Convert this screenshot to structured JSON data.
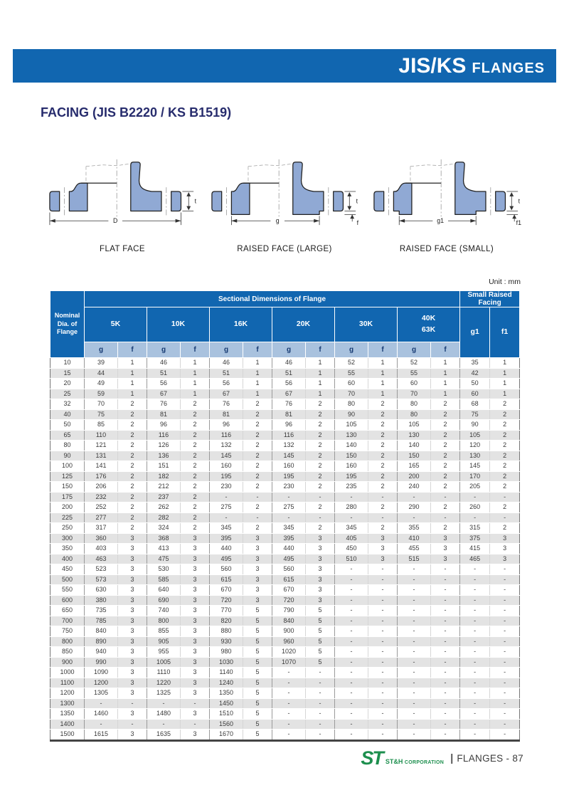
{
  "page": {
    "header_bar": {
      "title_main": "JIS/KS",
      "title_sub": "FLANGES"
    },
    "section_title": "FACING (JIS B2220 / KS B1519)",
    "unit_label": "Unit : mm"
  },
  "diagrams": [
    {
      "caption": "FLAT FACE",
      "dim_width": "D",
      "dim_thickness": "t",
      "dim_face": ""
    },
    {
      "caption": "RAISED FACE (LARGE)",
      "dim_width": "g",
      "dim_thickness": "t",
      "dim_face": "f"
    },
    {
      "caption": "RAISED FACE (SMALL)",
      "dim_width": "g1",
      "dim_thickness": "t",
      "dim_face": "f1"
    }
  ],
  "table": {
    "header": {
      "nominal_lines": [
        "Nominal",
        "Dia. of",
        "Flange"
      ],
      "group_main": "Sectional Dimensions of Flange",
      "group_right": "Small Raised Facing",
      "classes": [
        {
          "lines": [
            "5K"
          ]
        },
        {
          "lines": [
            "10K"
          ]
        },
        {
          "lines": [
            "16K"
          ]
        },
        {
          "lines": [
            "20K"
          ]
        },
        {
          "lines": [
            "30K"
          ]
        },
        {
          "lines": [
            "40K",
            "63K"
          ]
        }
      ],
      "sub_labels": [
        "g",
        "f"
      ],
      "right_cols": [
        "g1",
        "f1"
      ]
    },
    "rows": [
      {
        "dn": "10",
        "values": [
          "39",
          "1",
          "46",
          "1",
          "46",
          "1",
          "46",
          "1",
          "52",
          "1",
          "52",
          "1",
          "35",
          "1"
        ]
      },
      {
        "dn": "15",
        "values": [
          "44",
          "1",
          "51",
          "1",
          "51",
          "1",
          "51",
          "1",
          "55",
          "1",
          "55",
          "1",
          "42",
          "1"
        ]
      },
      {
        "dn": "20",
        "values": [
          "49",
          "1",
          "56",
          "1",
          "56",
          "1",
          "56",
          "1",
          "60",
          "1",
          "60",
          "1",
          "50",
          "1"
        ]
      },
      {
        "dn": "25",
        "values": [
          "59",
          "1",
          "67",
          "1",
          "67",
          "1",
          "67",
          "1",
          "70",
          "1",
          "70",
          "1",
          "60",
          "1"
        ]
      },
      {
        "dn": "32",
        "values": [
          "70",
          "2",
          "76",
          "2",
          "76",
          "2",
          "76",
          "2",
          "80",
          "2",
          "80",
          "2",
          "68",
          "2"
        ]
      },
      {
        "dn": "40",
        "values": [
          "75",
          "2",
          "81",
          "2",
          "81",
          "2",
          "81",
          "2",
          "90",
          "2",
          "80",
          "2",
          "75",
          "2"
        ]
      },
      {
        "dn": "50",
        "values": [
          "85",
          "2",
          "96",
          "2",
          "96",
          "2",
          "96",
          "2",
          "105",
          "2",
          "105",
          "2",
          "90",
          "2"
        ]
      },
      {
        "dn": "65",
        "values": [
          "110",
          "2",
          "116",
          "2",
          "116",
          "2",
          "116",
          "2",
          "130",
          "2",
          "130",
          "2",
          "105",
          "2"
        ]
      },
      {
        "dn": "80",
        "values": [
          "121",
          "2",
          "126",
          "2",
          "132",
          "2",
          "132",
          "2",
          "140",
          "2",
          "140",
          "2",
          "120",
          "2"
        ]
      },
      {
        "dn": "90",
        "values": [
          "131",
          "2",
          "136",
          "2",
          "145",
          "2",
          "145",
          "2",
          "150",
          "2",
          "150",
          "2",
          "130",
          "2"
        ]
      },
      {
        "dn": "100",
        "values": [
          "141",
          "2",
          "151",
          "2",
          "160",
          "2",
          "160",
          "2",
          "160",
          "2",
          "165",
          "2",
          "145",
          "2"
        ]
      },
      {
        "dn": "125",
        "values": [
          "176",
          "2",
          "182",
          "2",
          "195",
          "2",
          "195",
          "2",
          "195",
          "2",
          "200",
          "2",
          "170",
          "2"
        ]
      },
      {
        "dn": "150",
        "values": [
          "206",
          "2",
          "212",
          "2",
          "230",
          "2",
          "230",
          "2",
          "235",
          "2",
          "240",
          "2",
          "205",
          "2"
        ]
      },
      {
        "dn": "175",
        "values": [
          "232",
          "2",
          "237",
          "2",
          "-",
          "-",
          "-",
          "-",
          "-",
          "-",
          "-",
          "-",
          "-",
          "-"
        ]
      },
      {
        "dn": "200",
        "values": [
          "252",
          "2",
          "262",
          "2",
          "275",
          "2",
          "275",
          "2",
          "280",
          "2",
          "290",
          "2",
          "260",
          "2"
        ]
      },
      {
        "dn": "225",
        "values": [
          "277",
          "2",
          "282",
          "2",
          "-",
          "-",
          "-",
          "-",
          "-",
          "-",
          "-",
          "-",
          "-",
          "-"
        ]
      },
      {
        "dn": "250",
        "values": [
          "317",
          "2",
          "324",
          "2",
          "345",
          "2",
          "345",
          "2",
          "345",
          "2",
          "355",
          "2",
          "315",
          "2"
        ]
      },
      {
        "dn": "300",
        "values": [
          "360",
          "3",
          "368",
          "3",
          "395",
          "3",
          "395",
          "3",
          "405",
          "3",
          "410",
          "3",
          "375",
          "3"
        ]
      },
      {
        "dn": "350",
        "values": [
          "403",
          "3",
          "413",
          "3",
          "440",
          "3",
          "440",
          "3",
          "450",
          "3",
          "455",
          "3",
          "415",
          "3"
        ]
      },
      {
        "dn": "400",
        "values": [
          "463",
          "3",
          "475",
          "3",
          "495",
          "3",
          "495",
          "3",
          "510",
          "3",
          "515",
          "3",
          "465",
          "3"
        ]
      },
      {
        "dn": "450",
        "values": [
          "523",
          "3",
          "530",
          "3",
          "560",
          "3",
          "560",
          "3",
          "-",
          "-",
          "-",
          "-",
          "-",
          "-"
        ]
      },
      {
        "dn": "500",
        "values": [
          "573",
          "3",
          "585",
          "3",
          "615",
          "3",
          "615",
          "3",
          "-",
          "-",
          "-",
          "-",
          "-",
          "-"
        ]
      },
      {
        "dn": "550",
        "values": [
          "630",
          "3",
          "640",
          "3",
          "670",
          "3",
          "670",
          "3",
          "-",
          "-",
          "-",
          "-",
          "-",
          "-"
        ]
      },
      {
        "dn": "600",
        "values": [
          "380",
          "3",
          "690",
          "3",
          "720",
          "3",
          "720",
          "3",
          "-",
          "-",
          "-",
          "-",
          "-",
          "-"
        ]
      },
      {
        "dn": "650",
        "values": [
          "735",
          "3",
          "740",
          "3",
          "770",
          "5",
          "790",
          "5",
          "-",
          "-",
          "-",
          "-",
          "-",
          "-"
        ]
      },
      {
        "dn": "700",
        "values": [
          "785",
          "3",
          "800",
          "3",
          "820",
          "5",
          "840",
          "5",
          "-",
          "-",
          "-",
          "-",
          "-",
          "-"
        ]
      },
      {
        "dn": "750",
        "values": [
          "840",
          "3",
          "855",
          "3",
          "880",
          "5",
          "900",
          "5",
          "-",
          "-",
          "-",
          "-",
          "-",
          "-"
        ]
      },
      {
        "dn": "800",
        "values": [
          "890",
          "3",
          "905",
          "3",
          "930",
          "5",
          "960",
          "5",
          "-",
          "-",
          "-",
          "-",
          "-",
          "-"
        ]
      },
      {
        "dn": "850",
        "values": [
          "940",
          "3",
          "955",
          "3",
          "980",
          "5",
          "1020",
          "5",
          "-",
          "-",
          "-",
          "-",
          "-",
          "-"
        ]
      },
      {
        "dn": "900",
        "values": [
          "990",
          "3",
          "1005",
          "3",
          "1030",
          "5",
          "1070",
          "5",
          "-",
          "-",
          "-",
          "-",
          "-",
          "-"
        ]
      },
      {
        "dn": "1000",
        "values": [
          "1090",
          "3",
          "1110",
          "3",
          "1140",
          "5",
          "-",
          "-",
          "-",
          "-",
          "-",
          "-",
          "-",
          "-"
        ]
      },
      {
        "dn": "1100",
        "values": [
          "1200",
          "3",
          "1220",
          "3",
          "1240",
          "5",
          "-",
          "-",
          "-",
          "-",
          "-",
          "-",
          "-",
          "-"
        ]
      },
      {
        "dn": "1200",
        "values": [
          "1305",
          "3",
          "1325",
          "3",
          "1350",
          "5",
          "-",
          "-",
          "-",
          "-",
          "-",
          "-",
          "-",
          "-"
        ]
      },
      {
        "dn": "1300",
        "values": [
          "-",
          "-",
          "-",
          "-",
          "1450",
          "5",
          "-",
          "-",
          "-",
          "-",
          "-",
          "-",
          "-",
          "-"
        ]
      },
      {
        "dn": "1350",
        "values": [
          "1460",
          "3",
          "1480",
          "3",
          "1510",
          "5",
          "-",
          "-",
          "-",
          "-",
          "-",
          "-",
          "-",
          "-"
        ]
      },
      {
        "dn": "1400",
        "values": [
          "-",
          "-",
          "-",
          "-",
          "1560",
          "5",
          "-",
          "-",
          "-",
          "-",
          "-",
          "-",
          "-",
          "-"
        ]
      },
      {
        "dn": "1500",
        "values": [
          "1615",
          "3",
          "1635",
          "3",
          "1670",
          "5",
          "-",
          "-",
          "-",
          "-",
          "-",
          "-",
          "-",
          "-"
        ]
      }
    ]
  },
  "footer": {
    "logo": "ST",
    "company": "ST&H",
    "corporation": "CORPORATION",
    "separator": "|",
    "page_label": "FLANGES - 87"
  }
}
